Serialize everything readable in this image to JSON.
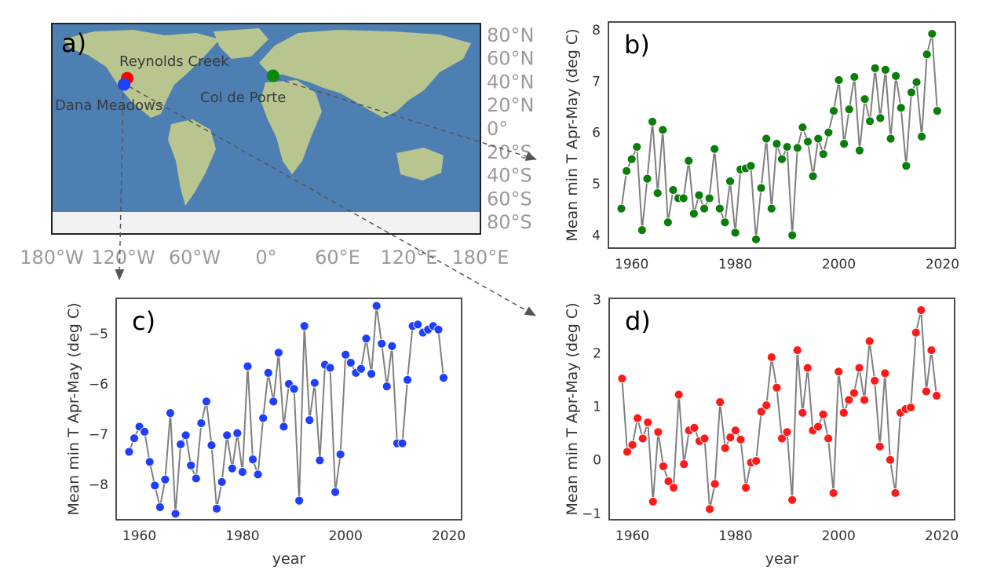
{
  "map": {
    "panel_label": "a)",
    "lat_ticks": [
      "80°N",
      "60°N",
      "40°N",
      "20°N",
      "0°",
      "20°S",
      "40°S",
      "60°S",
      "80°S"
    ],
    "lon_ticks": [
      "180°W",
      "120°W",
      "60°W",
      "0°",
      "60°E",
      "120°E",
      "180°E"
    ],
    "sites": [
      {
        "name": "Reynolds Creek",
        "lon": -116.7,
        "lat": 43.2,
        "color": "#ff0000"
      },
      {
        "name": "Dana Meadows",
        "lon": -119.3,
        "lat": 37.9,
        "color": "#1f3fff"
      },
      {
        "name": "Col de Porte",
        "lon": 5.8,
        "lat": 45.3,
        "color": "#0a8a0a"
      }
    ],
    "colors": {
      "ocean": "#4d7fb2",
      "land": "#b9c58f",
      "ice": "#f2f2f2"
    }
  },
  "chart_data": [
    {
      "type": "line",
      "panel": "b)",
      "xlabel": "",
      "ylabel": "Mean min T Apr-May (deg C)",
      "xlim": [
        1955.5,
        2022.5
      ],
      "ylim": [
        3.75,
        8.15
      ],
      "xticks": [
        1960,
        1980,
        2000,
        2020
      ],
      "yticks": [
        4,
        5,
        6,
        7,
        8
      ],
      "marker_color": "#0a7d0a",
      "line_color": "#808080",
      "x": [
        1958,
        1959,
        1960,
        1961,
        1962,
        1963,
        1964,
        1965,
        1966,
        1967,
        1968,
        1969,
        1970,
        1971,
        1972,
        1973,
        1974,
        1975,
        1976,
        1977,
        1978,
        1979,
        1980,
        1981,
        1982,
        1983,
        1984,
        1985,
        1986,
        1987,
        1988,
        1989,
        1990,
        1991,
        1992,
        1993,
        1994,
        1995,
        1996,
        1997,
        1998,
        1999,
        2000,
        2001,
        2002,
        2003,
        2004,
        2005,
        2006,
        2007,
        2008,
        2009,
        2010,
        2011,
        2012,
        2013,
        2014,
        2015,
        2016,
        2017,
        2018,
        2019
      ],
      "y": [
        4.52,
        5.25,
        5.48,
        5.72,
        4.1,
        5.1,
        6.21,
        4.82,
        6.05,
        4.25,
        4.88,
        4.72,
        4.72,
        5.45,
        4.42,
        4.78,
        4.52,
        4.72,
        5.68,
        4.52,
        4.25,
        5.05,
        4.05,
        5.28,
        5.3,
        5.35,
        3.92,
        4.92,
        5.88,
        4.52,
        5.78,
        5.48,
        5.72,
        4.0,
        5.7,
        6.1,
        5.82,
        5.15,
        5.88,
        5.58,
        6.0,
        6.42,
        7.02,
        5.78,
        6.45,
        7.08,
        5.65,
        6.65,
        6.22,
        7.25,
        6.28,
        7.22,
        5.88,
        7.1,
        6.48,
        5.35,
        6.78,
        6.98,
        5.92,
        7.52,
        7.92,
        6.42
      ]
    },
    {
      "type": "line",
      "panel": "c)",
      "xlabel": "year",
      "ylabel": "Mean min T Apr-May (deg C)",
      "xlim": [
        1955.5,
        2022.5
      ],
      "ylim": [
        -8.7,
        -4.3
      ],
      "xticks": [
        1960,
        1980,
        2000,
        2020
      ],
      "yticks": [
        -8,
        -7,
        -6,
        -5
      ],
      "marker_color": "#1f3fff",
      "line_color": "#808080",
      "x": [
        1958,
        1959,
        1960,
        1961,
        1962,
        1963,
        1964,
        1965,
        1966,
        1967,
        1968,
        1969,
        1970,
        1971,
        1972,
        1973,
        1974,
        1975,
        1976,
        1977,
        1978,
        1979,
        1980,
        1981,
        1982,
        1983,
        1984,
        1985,
        1986,
        1987,
        1988,
        1989,
        1990,
        1991,
        1992,
        1993,
        1994,
        1995,
        1996,
        1997,
        1998,
        1999,
        2000,
        2001,
        2002,
        2003,
        2004,
        2005,
        2006,
        2007,
        2008,
        2009,
        2010,
        2011,
        2012,
        2013,
        2014,
        2015,
        2016,
        2017,
        2018,
        2019
      ],
      "y": [
        -7.35,
        -7.08,
        -6.85,
        -6.95,
        -7.55,
        -8.02,
        -8.45,
        -7.9,
        -6.58,
        -8.58,
        -7.2,
        -7.02,
        -7.62,
        -7.88,
        -6.78,
        -6.35,
        -7.22,
        -8.48,
        -7.95,
        -7.02,
        -7.68,
        -6.98,
        -7.75,
        -5.65,
        -7.5,
        -7.8,
        -6.68,
        -5.78,
        -6.35,
        -5.38,
        -6.85,
        -6.0,
        -6.1,
        -8.32,
        -4.85,
        -6.72,
        -5.98,
        -7.52,
        -5.62,
        -5.68,
        -8.15,
        -7.4,
        -5.42,
        -5.58,
        -5.78,
        -5.7,
        -5.1,
        -5.8,
        -4.45,
        -5.2,
        -6.05,
        -5.25,
        -7.18,
        -7.18,
        -5.92,
        -4.85,
        -4.82,
        -4.98,
        -4.92,
        -4.85,
        -4.92,
        -5.88
      ]
    },
    {
      "type": "line",
      "panel": "d)",
      "xlabel": "year",
      "ylabel": "Mean min T Apr-May (deg C)",
      "xlim": [
        1955.5,
        2022.5
      ],
      "ylim": [
        -1.12,
        3.02
      ],
      "xticks": [
        1960,
        1980,
        2000,
        2020
      ],
      "yticks": [
        -1,
        0,
        1,
        2,
        3
      ],
      "marker_color": "#ff1a1a",
      "line_color": "#808080",
      "x": [
        1958,
        1959,
        1960,
        1961,
        1962,
        1963,
        1964,
        1965,
        1966,
        1967,
        1968,
        1969,
        1970,
        1971,
        1972,
        1973,
        1974,
        1975,
        1976,
        1977,
        1978,
        1979,
        1980,
        1981,
        1982,
        1983,
        1984,
        1985,
        1986,
        1987,
        1988,
        1989,
        1990,
        1991,
        1992,
        1993,
        1994,
        1995,
        1996,
        1997,
        1998,
        1999,
        2000,
        2001,
        2002,
        2003,
        2004,
        2005,
        2006,
        2007,
        2008,
        2009,
        2010,
        2011,
        2012,
        2013,
        2014,
        2015,
        2016,
        2017,
        2018,
        2019
      ],
      "y": [
        1.52,
        0.15,
        0.28,
        0.78,
        0.4,
        0.7,
        -0.78,
        0.52,
        -0.12,
        -0.4,
        -0.52,
        1.22,
        -0.08,
        0.55,
        0.6,
        0.35,
        0.4,
        -0.92,
        -0.45,
        1.08,
        0.22,
        0.42,
        0.55,
        0.38,
        -0.52,
        -0.05,
        -0.02,
        0.9,
        1.02,
        1.92,
        1.35,
        0.4,
        0.52,
        -0.75,
        2.05,
        0.88,
        1.72,
        0.55,
        0.62,
        0.85,
        0.4,
        -0.62,
        1.65,
        0.88,
        1.12,
        1.25,
        1.72,
        1.12,
        2.22,
        1.48,
        0.25,
        1.62,
        0.0,
        -0.62,
        0.88,
        0.95,
        0.98,
        2.38,
        2.8,
        1.28,
        2.05,
        1.2
      ]
    }
  ]
}
